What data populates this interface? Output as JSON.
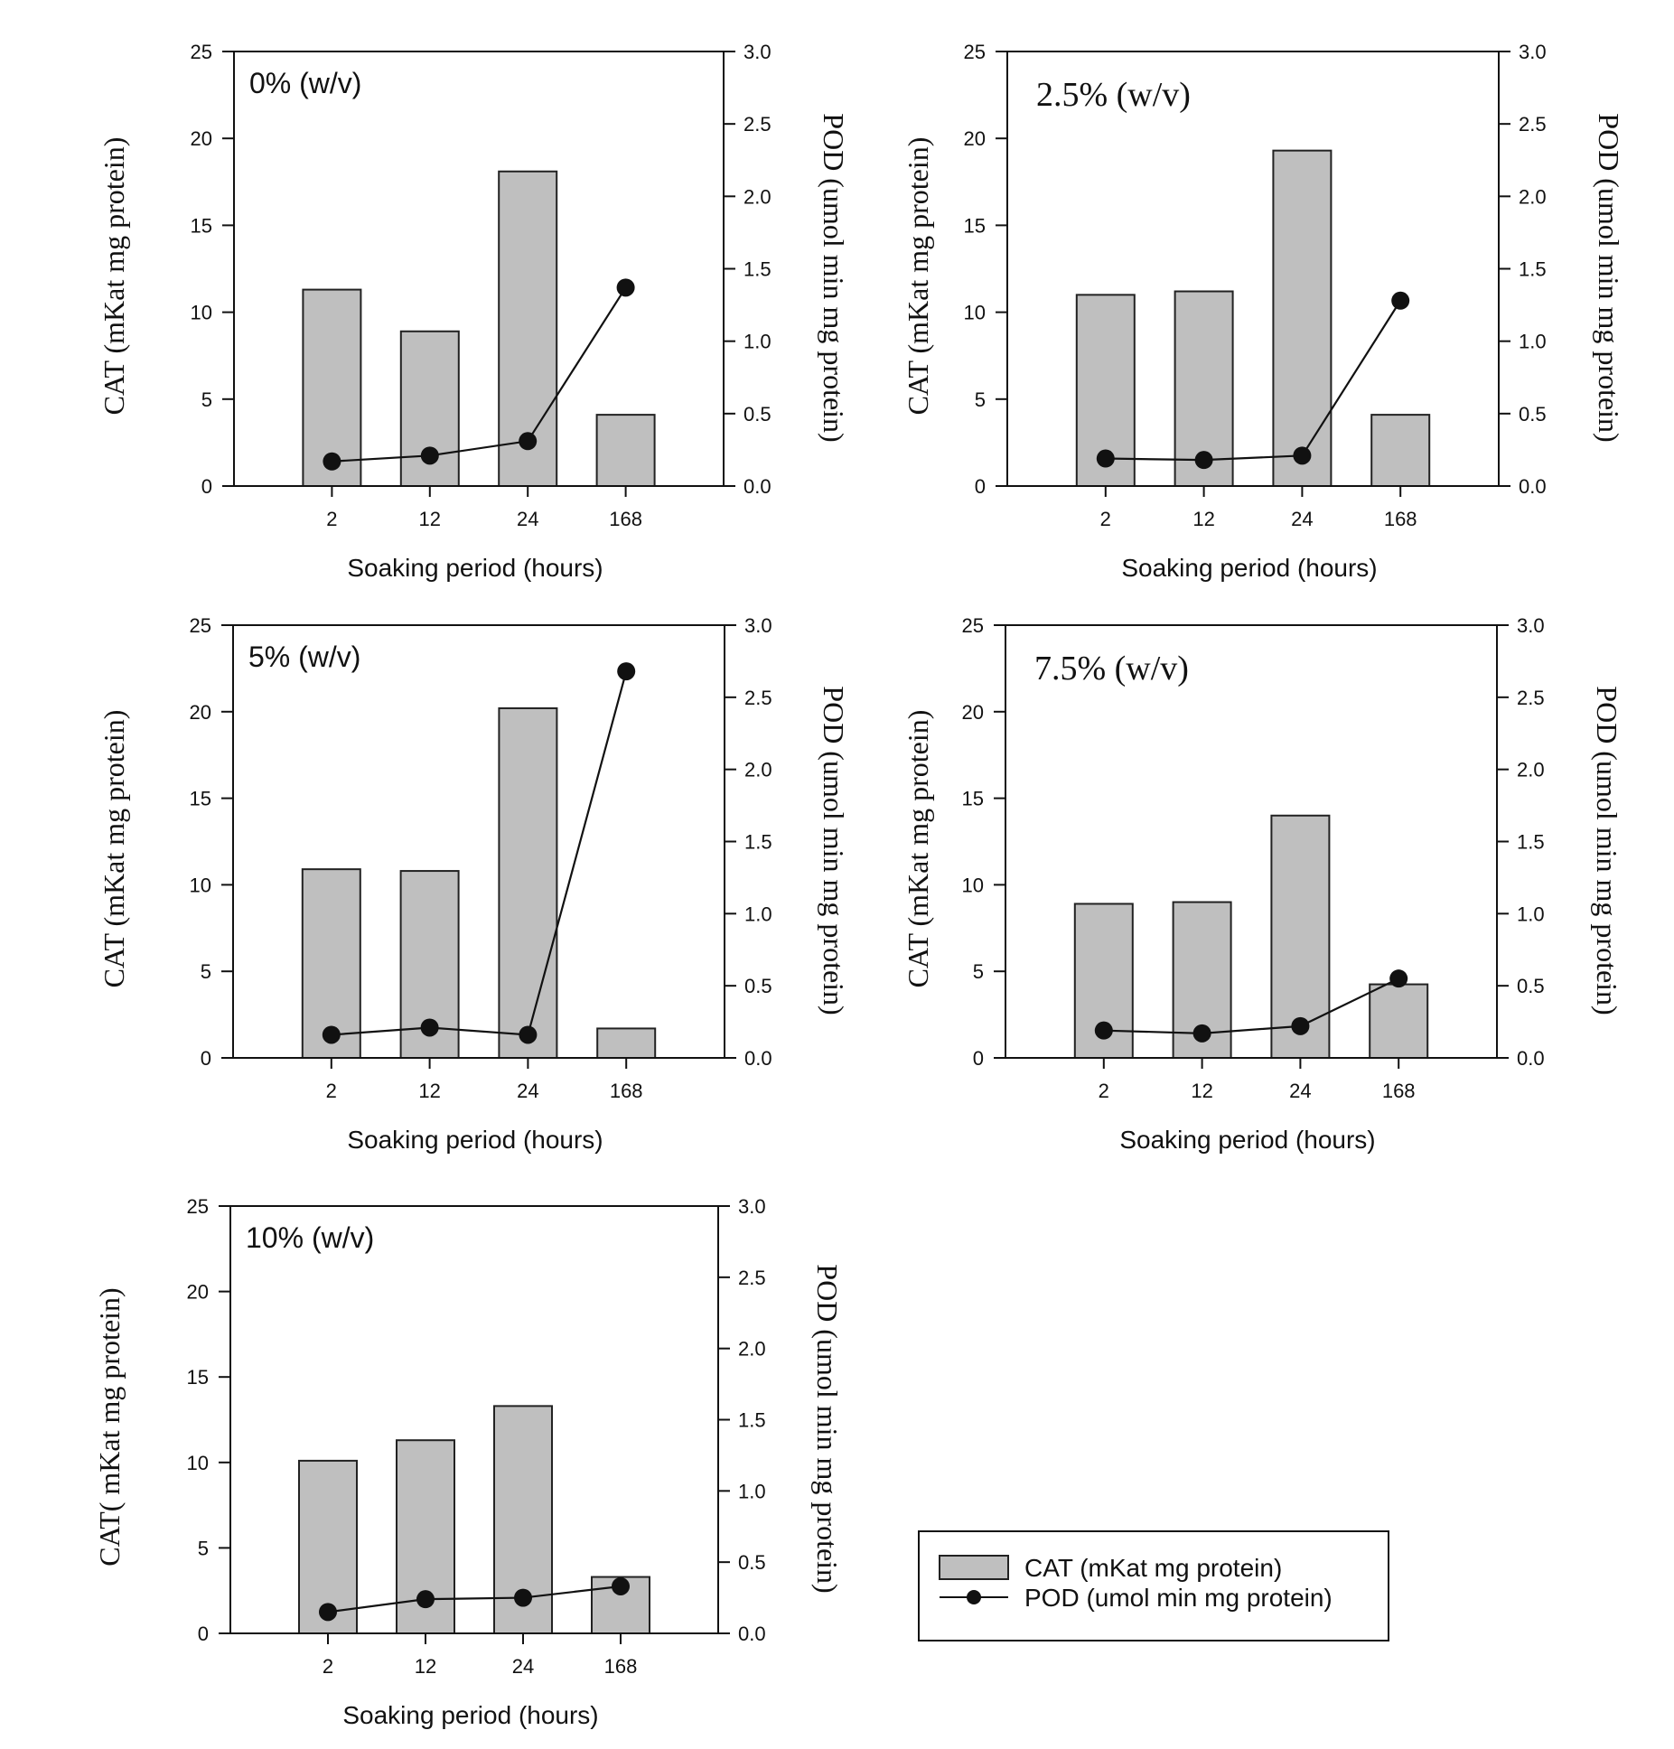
{
  "figure": {
    "legend": {
      "items": [
        {
          "label": "CAT (mKat mg protein)",
          "kind": "bar"
        },
        {
          "label": "POD (umol min mg protein)",
          "kind": "line-marker"
        }
      ]
    },
    "colors": {
      "bar_fill": "#bfbfbf",
      "bar_edge": "#222222",
      "line": "#111111",
      "marker": "#111111"
    }
  },
  "chart_data": [
    {
      "type": "bar",
      "title": "0% (w/v)",
      "title_style": "sans",
      "categories": [
        "2",
        "12",
        "24",
        "168"
      ],
      "xlabel": "Soaking period (hours)",
      "ylabel": "CAT (mKat mg  protein)",
      "y2label": "POD (umol min mg protein)",
      "ylim": [
        0,
        25
      ],
      "y2lim": [
        0,
        3.0
      ],
      "yticks": [
        "0",
        "5",
        "10",
        "15",
        "20",
        "25"
      ],
      "y2ticks": [
        "0.0",
        "0.5",
        "1.0",
        "1.5",
        "2.0",
        "2.5",
        "3.0"
      ],
      "series": [
        {
          "name": "CAT (mKat mg protein)",
          "type": "bar",
          "axis": "left",
          "values": [
            11.3,
            8.9,
            18.1,
            4.1
          ]
        },
        {
          "name": "POD (umol min mg protein)",
          "type": "line",
          "axis": "right",
          "values": [
            0.17,
            0.21,
            0.31,
            1.37
          ]
        }
      ],
      "grid": false
    },
    {
      "type": "bar",
      "title": "2.5% (w/v)",
      "title_style": "serif",
      "categories": [
        "2",
        "12",
        "24",
        "168"
      ],
      "xlabel": "Soaking period (hours)",
      "ylabel": "CAT (mKat mg protein)",
      "y2label": "POD (umol min mg protein)",
      "ylim": [
        0,
        25
      ],
      "y2lim": [
        0,
        3.0
      ],
      "yticks": [
        "0",
        "5",
        "10",
        "15",
        "20",
        "25"
      ],
      "y2ticks": [
        "0.0",
        "0.5",
        "1.0",
        "1.5",
        "2.0",
        "2.5",
        "3.0"
      ],
      "series": [
        {
          "name": "CAT (mKat mg protein)",
          "type": "bar",
          "axis": "left",
          "values": [
            11.0,
            11.2,
            19.3,
            4.1
          ]
        },
        {
          "name": "POD (umol min mg protein)",
          "type": "line",
          "axis": "right",
          "values": [
            0.19,
            0.18,
            0.21,
            1.28
          ]
        }
      ],
      "grid": false
    },
    {
      "type": "bar",
      "title": "5% (w/v)",
      "title_style": "sans",
      "categories": [
        "2",
        "12",
        "24",
        "168"
      ],
      "xlabel": "Soaking period (hours)",
      "ylabel": "CAT (mKat mg protein)",
      "y2label": "POD (umol min mg protein)",
      "ylim": [
        0,
        25
      ],
      "y2lim": [
        0,
        3.0
      ],
      "yticks": [
        "0",
        "5",
        "10",
        "15",
        "20",
        "25"
      ],
      "y2ticks": [
        "0.0",
        "0.5",
        "1.0",
        "1.5",
        "2.0",
        "2.5",
        "3.0"
      ],
      "series": [
        {
          "name": "CAT (mKat mg protein)",
          "type": "bar",
          "axis": "left",
          "values": [
            10.9,
            10.8,
            20.2,
            1.7
          ]
        },
        {
          "name": "POD (umol min mg protein)",
          "type": "line",
          "axis": "right",
          "values": [
            0.16,
            0.21,
            0.16,
            2.68
          ]
        }
      ],
      "grid": false
    },
    {
      "type": "bar",
      "title": "7.5% (w/v)",
      "title_style": "serif",
      "categories": [
        "2",
        "12",
        "24",
        "168"
      ],
      "xlabel": "Soaking period (hours)",
      "ylabel": "CAT (mKat mg protein)",
      "y2label": "POD (umol min mg protein)",
      "ylim": [
        0,
        25
      ],
      "y2lim": [
        0,
        3.0
      ],
      "yticks": [
        "0",
        "5",
        "10",
        "15",
        "20",
        "25"
      ],
      "y2ticks": [
        "0.0",
        "0.5",
        "1.0",
        "1.5",
        "2.0",
        "2.5",
        "3.0"
      ],
      "series": [
        {
          "name": "CAT (mKat mg protein)",
          "type": "bar",
          "axis": "left",
          "values": [
            8.9,
            9.0,
            14.0,
            4.25
          ]
        },
        {
          "name": "POD (umol min mg protein)",
          "type": "line",
          "axis": "right",
          "values": [
            0.19,
            0.17,
            0.22,
            0.55
          ]
        }
      ],
      "grid": false
    },
    {
      "type": "bar",
      "title": "10% (w/v)",
      "title_style": "sans",
      "categories": [
        "2",
        "12",
        "24",
        "168"
      ],
      "xlabel": "Soaking period (hours)",
      "ylabel": "CAT( mKat mg protein)",
      "y2label": "POD (umol min mg protein)",
      "ylim": [
        0,
        25
      ],
      "y2lim": [
        0,
        3.0
      ],
      "yticks": [
        "0",
        "5",
        "10",
        "15",
        "20",
        "25"
      ],
      "y2ticks": [
        "0.0",
        "0.5",
        "1.0",
        "1.5",
        "2.0",
        "2.5",
        "3.0"
      ],
      "series": [
        {
          "name": "CAT (mKat mg protein)",
          "type": "bar",
          "axis": "left",
          "values": [
            10.1,
            11.3,
            13.3,
            3.3
          ]
        },
        {
          "name": "POD (umol min mg protein)",
          "type": "line",
          "axis": "right",
          "values": [
            0.15,
            0.24,
            0.25,
            0.33
          ]
        }
      ],
      "grid": false
    }
  ]
}
